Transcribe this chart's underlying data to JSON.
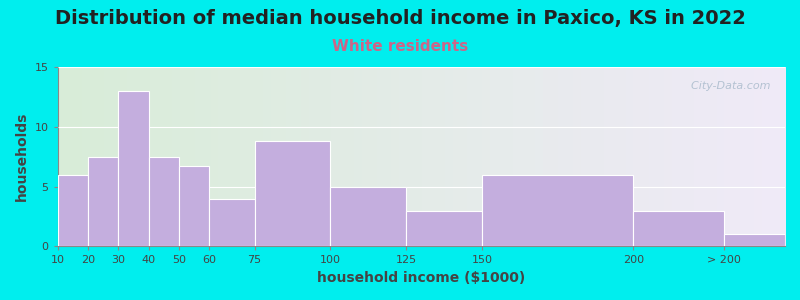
{
  "title": "Distribution of median household income in Paxico, KS in 2022",
  "subtitle": "White residents",
  "xlabel": "household income ($1000)",
  "ylabel": "households",
  "bar_labels": [
    "10",
    "20",
    "30",
    "40",
    "50",
    "60",
    "75",
    "100",
    "125",
    "150",
    "200",
    "> 200"
  ],
  "bar_heights": [
    6,
    7.5,
    13,
    7.5,
    6.7,
    4,
    8.8,
    5,
    3,
    6,
    3,
    1
  ],
  "bar_color": "#c4aede",
  "bar_edge_color": "#ffffff",
  "ylim": [
    0,
    15
  ],
  "yticks": [
    0,
    5,
    10,
    15
  ],
  "background_color": "#00eeee",
  "plot_bg_left": "#d8edd8",
  "plot_bg_right": "#f0eaf8",
  "title_fontsize": 14,
  "subtitle_fontsize": 11,
  "subtitle_color": "#cc6688",
  "axis_label_fontsize": 10,
  "tick_label_fontsize": 8,
  "watermark": "  City-Data.com",
  "watermark_color": "#aabbcc"
}
